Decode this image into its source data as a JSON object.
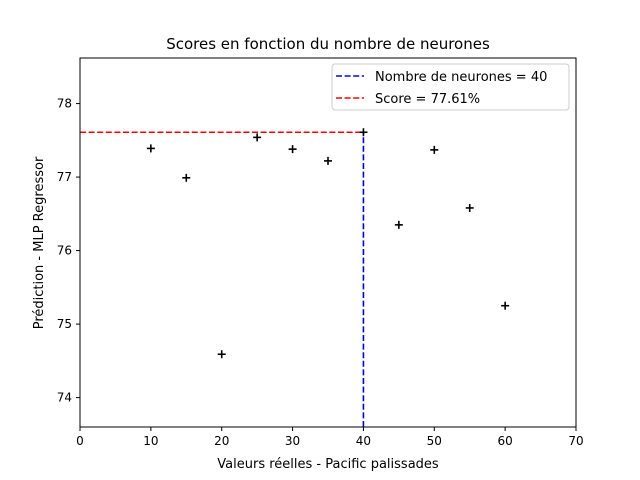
{
  "chart_data": {
    "type": "scatter",
    "title": "Scores en fonction du nombre de neurones",
    "xlabel": "Valeurs réelles - Pacific palissades",
    "ylabel": "Prédiction - MLP Regressor",
    "xlim": [
      0,
      70
    ],
    "ylim": [
      73.6,
      78.62
    ],
    "xticks": [
      0,
      10,
      20,
      30,
      40,
      50,
      60,
      70
    ],
    "yticks": [
      74,
      75,
      76,
      77,
      78
    ],
    "grid": false,
    "legend_position": "top-right",
    "points": {
      "x": [
        10,
        15,
        20,
        25,
        30,
        35,
        40,
        45,
        50,
        55,
        60
      ],
      "y": [
        77.39,
        76.99,
        74.59,
        77.54,
        77.38,
        77.22,
        77.61,
        76.35,
        77.37,
        76.58,
        75.25
      ],
      "marker": "+",
      "color": "#000000"
    },
    "reference_lines": [
      {
        "orientation": "vertical",
        "value": 40,
        "from": 73.6,
        "to": 77.61,
        "color": "#0000ff",
        "style": "dashed",
        "label": "Nombre de neurones = 40"
      },
      {
        "orientation": "horizontal",
        "value": 77.61,
        "from": 0,
        "to": 40,
        "color": "#ff0000",
        "style": "dashed",
        "label": "Score = 77.61%"
      }
    ]
  }
}
